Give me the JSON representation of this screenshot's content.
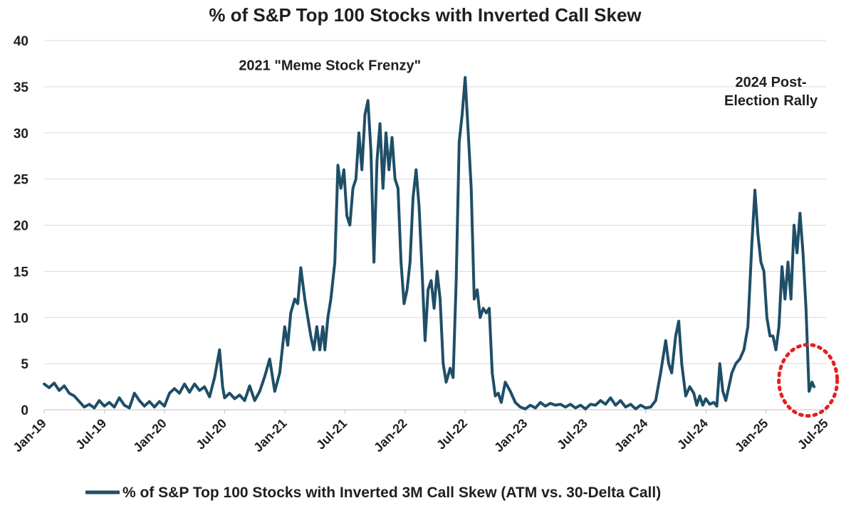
{
  "chart_data": {
    "type": "line",
    "title": "% of S&P Top 100 Stocks with Inverted Call Skew",
    "xlabel": "",
    "ylabel": "",
    "ylim": [
      0,
      40
    ],
    "y_ticks": [
      0,
      5,
      10,
      15,
      20,
      25,
      30,
      35,
      40
    ],
    "x_tick_labels": [
      "Jan-19",
      "Jul-19",
      "Jan-20",
      "Jul-20",
      "Jan-21",
      "Jul-21",
      "Jan-22",
      "Jul-22",
      "Jan-23",
      "Jul-23",
      "Jan-24",
      "Jul-24",
      "Jan-25",
      "Jul-25"
    ],
    "x_range_months": [
      0,
      78
    ],
    "grid": true,
    "legend_position": "bottom",
    "series_color": "#1f4e67",
    "annotations": [
      {
        "text": "2021 \"Meme Stock Frenzy\"",
        "x_month": 28.5,
        "y": 36.8
      },
      {
        "text": "2024 Post-",
        "x_month": 72.5,
        "y": 35.0
      },
      {
        "text": "Election Rally",
        "x_month": 72.5,
        "y": 33.0
      }
    ],
    "highlight_circle": {
      "x_month": 76.2,
      "y": 3.2,
      "color": "#e32020"
    },
    "series": [
      {
        "name": "% of S&P Top 100 Stocks with Inverted 3M Call Skew (ATM vs. 30-Delta Call)",
        "points": [
          [
            0,
            2.8
          ],
          [
            0.5,
            2.4
          ],
          [
            1,
            2.9
          ],
          [
            1.5,
            2.1
          ],
          [
            2,
            2.6
          ],
          [
            2.5,
            1.8
          ],
          [
            3,
            1.5
          ],
          [
            3.5,
            0.9
          ],
          [
            4,
            0.3
          ],
          [
            4.5,
            0.6
          ],
          [
            5,
            0.2
          ],
          [
            5.5,
            1.0
          ],
          [
            6,
            0.4
          ],
          [
            6.5,
            0.8
          ],
          [
            7,
            0.3
          ],
          [
            7.5,
            1.3
          ],
          [
            8,
            0.5
          ],
          [
            8.5,
            0.2
          ],
          [
            9,
            1.8
          ],
          [
            9.5,
            1.0
          ],
          [
            10,
            0.4
          ],
          [
            10.5,
            0.9
          ],
          [
            11,
            0.3
          ],
          [
            11.5,
            0.9
          ],
          [
            12,
            0.4
          ],
          [
            12.5,
            1.8
          ],
          [
            13,
            2.3
          ],
          [
            13.5,
            1.8
          ],
          [
            14,
            2.8
          ],
          [
            14.5,
            1.9
          ],
          [
            15,
            2.8
          ],
          [
            15.5,
            2.1
          ],
          [
            16,
            2.5
          ],
          [
            16.5,
            1.4
          ],
          [
            17,
            3.5
          ],
          [
            17.5,
            6.5
          ],
          [
            17.8,
            2.5
          ],
          [
            18,
            1.3
          ],
          [
            18.5,
            1.8
          ],
          [
            19,
            1.2
          ],
          [
            19.5,
            1.6
          ],
          [
            20,
            1.0
          ],
          [
            20.5,
            2.6
          ],
          [
            21,
            1.0
          ],
          [
            21.5,
            2.0
          ],
          [
            22,
            3.6
          ],
          [
            22.5,
            5.5
          ],
          [
            23,
            2.0
          ],
          [
            23.5,
            4.0
          ],
          [
            24,
            9.0
          ],
          [
            24.3,
            7.0
          ],
          [
            24.6,
            10.5
          ],
          [
            25,
            12.0
          ],
          [
            25.3,
            11.5
          ],
          [
            25.6,
            15.4
          ],
          [
            26,
            12.0
          ],
          [
            26.3,
            10.0
          ],
          [
            26.6,
            8.0
          ],
          [
            26.9,
            6.5
          ],
          [
            27.2,
            9.0
          ],
          [
            27.5,
            6.5
          ],
          [
            27.8,
            9.0
          ],
          [
            28,
            6.5
          ],
          [
            28.3,
            10.0
          ],
          [
            28.6,
            12.0
          ],
          [
            29,
            16.0
          ],
          [
            29.3,
            26.5
          ],
          [
            29.6,
            24.0
          ],
          [
            29.9,
            26.0
          ],
          [
            30.2,
            21.0
          ],
          [
            30.5,
            20.0
          ],
          [
            30.8,
            24.0
          ],
          [
            31.1,
            25.0
          ],
          [
            31.4,
            30.0
          ],
          [
            31.7,
            26.0
          ],
          [
            32,
            32.0
          ],
          [
            32.3,
            33.5
          ],
          [
            32.6,
            28.0
          ],
          [
            32.9,
            16.0
          ],
          [
            33.2,
            27.0
          ],
          [
            33.5,
            31.0
          ],
          [
            33.8,
            24.0
          ],
          [
            34.1,
            30.0
          ],
          [
            34.4,
            26.0
          ],
          [
            34.7,
            29.5
          ],
          [
            35,
            25.0
          ],
          [
            35.3,
            24.0
          ],
          [
            35.6,
            16.0
          ],
          [
            35.9,
            11.5
          ],
          [
            36.2,
            13.0
          ],
          [
            36.5,
            16.0
          ],
          [
            36.8,
            23.0
          ],
          [
            37.1,
            26.0
          ],
          [
            37.4,
            22.0
          ],
          [
            37.7,
            15.0
          ],
          [
            38,
            7.5
          ],
          [
            38.3,
            13.0
          ],
          [
            38.6,
            14.0
          ],
          [
            38.9,
            11.0
          ],
          [
            39.2,
            15.0
          ],
          [
            39.5,
            12.0
          ],
          [
            39.8,
            5.0
          ],
          [
            40.1,
            3.0
          ],
          [
            40.5,
            4.5
          ],
          [
            40.8,
            3.5
          ],
          [
            41.1,
            14.0
          ],
          [
            41.4,
            29.0
          ],
          [
            41.7,
            32.0
          ],
          [
            42,
            36.0
          ],
          [
            42.3,
            30.0
          ],
          [
            42.6,
            24.0
          ],
          [
            42.9,
            12.0
          ],
          [
            43.2,
            13.0
          ],
          [
            43.5,
            10.0
          ],
          [
            43.8,
            11.0
          ],
          [
            44.1,
            10.5
          ],
          [
            44.4,
            11.0
          ],
          [
            44.7,
            4.0
          ],
          [
            45,
            1.5
          ],
          [
            45.3,
            1.8
          ],
          [
            45.6,
            0.8
          ],
          [
            46,
            3.0
          ],
          [
            46.5,
            2.0
          ],
          [
            47,
            0.8
          ],
          [
            47.5,
            0.3
          ],
          [
            48,
            0.1
          ],
          [
            48.5,
            0.5
          ],
          [
            49,
            0.2
          ],
          [
            49.5,
            0.8
          ],
          [
            50,
            0.4
          ],
          [
            50.5,
            0.7
          ],
          [
            51,
            0.5
          ],
          [
            51.5,
            0.6
          ],
          [
            52,
            0.3
          ],
          [
            52.5,
            0.6
          ],
          [
            53,
            0.2
          ],
          [
            53.5,
            0.5
          ],
          [
            54,
            0.1
          ],
          [
            54.5,
            0.6
          ],
          [
            55,
            0.5
          ],
          [
            55.5,
            1.0
          ],
          [
            56,
            0.6
          ],
          [
            56.5,
            1.3
          ],
          [
            57,
            0.5
          ],
          [
            57.5,
            1.0
          ],
          [
            58,
            0.3
          ],
          [
            58.5,
            0.6
          ],
          [
            59,
            0.1
          ],
          [
            59.5,
            0.5
          ],
          [
            60,
            0.2
          ],
          [
            60.5,
            0.3
          ],
          [
            61,
            1.0
          ],
          [
            61.5,
            4.0
          ],
          [
            62,
            7.5
          ],
          [
            62.3,
            5.0
          ],
          [
            62.6,
            4.0
          ],
          [
            63,
            8.0
          ],
          [
            63.3,
            9.6
          ],
          [
            63.6,
            5.0
          ],
          [
            64,
            1.5
          ],
          [
            64.4,
            2.5
          ],
          [
            64.8,
            1.8
          ],
          [
            65.1,
            0.5
          ],
          [
            65.4,
            1.5
          ],
          [
            65.7,
            0.5
          ],
          [
            66,
            1.2
          ],
          [
            66.4,
            0.6
          ],
          [
            66.8,
            0.8
          ],
          [
            67.1,
            0.4
          ],
          [
            67.4,
            5.0
          ],
          [
            67.7,
            2.0
          ],
          [
            68,
            1.0
          ],
          [
            68.3,
            2.5
          ],
          [
            68.6,
            4.0
          ],
          [
            69,
            5.0
          ],
          [
            69.4,
            5.5
          ],
          [
            69.8,
            6.5
          ],
          [
            70.2,
            9.0
          ],
          [
            70.6,
            18.0
          ],
          [
            70.9,
            23.8
          ],
          [
            71.2,
            19.0
          ],
          [
            71.5,
            16.0
          ],
          [
            71.8,
            15.0
          ],
          [
            72.1,
            10.0
          ],
          [
            72.4,
            8.0
          ],
          [
            72.7,
            8.0
          ],
          [
            73,
            6.5
          ],
          [
            73.3,
            9.0
          ],
          [
            73.6,
            15.5
          ],
          [
            73.9,
            12.0
          ],
          [
            74.2,
            16.0
          ],
          [
            74.5,
            12.0
          ],
          [
            74.8,
            20.0
          ],
          [
            75.1,
            17.0
          ],
          [
            75.4,
            21.3
          ],
          [
            75.7,
            17.0
          ],
          [
            76,
            11.0
          ],
          [
            76.3,
            2.0
          ],
          [
            76.6,
            3.0
          ],
          [
            76.8,
            2.5
          ]
        ]
      }
    ]
  }
}
